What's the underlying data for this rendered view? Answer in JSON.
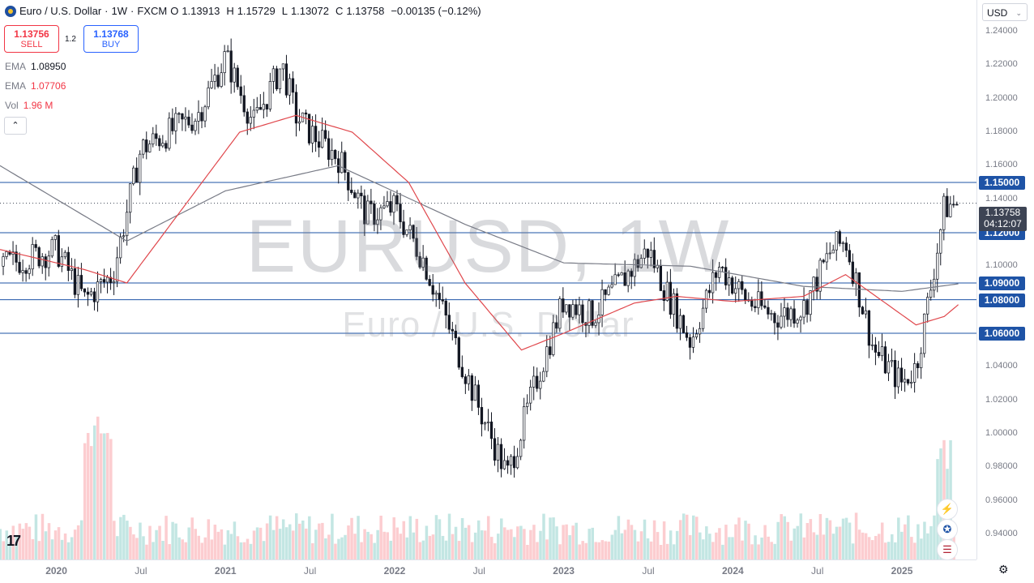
{
  "header": {
    "title": "Euro / U.S. Dollar",
    "interval": "1W",
    "source": "FXCM",
    "ohlc": [
      {
        "k": "O",
        "v": "1.13913"
      },
      {
        "k": "H",
        "v": "1.15729"
      },
      {
        "k": "L",
        "v": "1.13072"
      },
      {
        "k": "C",
        "v": "1.13758"
      }
    ],
    "change": "−0.00135 (−0.12%)"
  },
  "trade": {
    "sell_price": "1.13756",
    "sell_label": "SELL",
    "spread": "1.2",
    "buy_price": "1.13768",
    "buy_label": "BUY"
  },
  "indicators": [
    {
      "name": "EMA",
      "value": "1.08950",
      "color": "#787b86"
    },
    {
      "name": "EMA",
      "value": "1.07706",
      "color": "#f23645"
    },
    {
      "name": "Vol",
      "value": "1.96 M",
      "color": "#f23645"
    }
  ],
  "collapse_glyph": "⌃",
  "currency": "USD",
  "watermark": {
    "symbol": "EURUSD, 1W",
    "description": "Euro / U.S. Dollar"
  },
  "current_price": {
    "price": "1.13758",
    "countdown": "04:12:07"
  },
  "colors": {
    "up": "#26a69a",
    "down": "#131722",
    "level_line": "#1e53a6",
    "ema_fast": "#787b86",
    "ema_slow": "#e0474c"
  },
  "chart_data": {
    "type": "candlestick",
    "symbol": "EURUSD",
    "interval": "1W",
    "ylim": [
      0.925,
      1.255
    ],
    "xlim": [
      "2019-09",
      "2025-06"
    ],
    "y_ticks": [
      "1.24000",
      "1.22000",
      "1.20000",
      "1.18000",
      "1.16000",
      "1.14000",
      "1.12000",
      "1.10000",
      "1.08000",
      "1.06000",
      "1.04000",
      "1.02000",
      "1.00000",
      "0.98000",
      "0.96000",
      "0.94000"
    ],
    "x_ticks": [
      {
        "label": "2020",
        "date": "2020-01"
      },
      {
        "label": "Jul",
        "date": "2020-07"
      },
      {
        "label": "2021",
        "date": "2021-01"
      },
      {
        "label": "Jul",
        "date": "2021-07"
      },
      {
        "label": "2022",
        "date": "2022-01"
      },
      {
        "label": "Jul",
        "date": "2022-07"
      },
      {
        "label": "2023",
        "date": "2023-01"
      },
      {
        "label": "Jul",
        "date": "2023-07"
      },
      {
        "label": "2024",
        "date": "2024-01"
      },
      {
        "label": "Jul",
        "date": "2024-07"
      },
      {
        "label": "2025",
        "date": "2025-01"
      }
    ],
    "levels": [
      "1.15000",
      "1.12000",
      "1.09000",
      "1.08000",
      "1.06000"
    ],
    "price_path": [
      [
        "2019-09",
        1.1
      ],
      [
        "2019-11",
        1.105
      ],
      [
        "2020-01",
        1.11
      ],
      [
        "2020-03",
        1.08
      ],
      [
        "2020-05",
        1.095
      ],
      [
        "2020-07",
        1.17
      ],
      [
        "2020-09",
        1.18
      ],
      [
        "2020-11",
        1.19
      ],
      [
        "2021-01",
        1.225
      ],
      [
        "2021-03",
        1.185
      ],
      [
        "2021-05",
        1.22
      ],
      [
        "2021-06",
        1.19
      ],
      [
        "2021-07",
        1.18
      ],
      [
        "2021-09",
        1.165
      ],
      [
        "2021-11",
        1.13
      ],
      [
        "2022-01",
        1.135
      ],
      [
        "2022-03",
        1.105
      ],
      [
        "2022-05",
        1.06
      ],
      [
        "2022-07",
        1.015
      ],
      [
        "2022-09",
        0.975
      ],
      [
        "2022-11",
        1.03
      ],
      [
        "2023-01",
        1.08
      ],
      [
        "2023-03",
        1.07
      ],
      [
        "2023-05",
        1.09
      ],
      [
        "2023-07",
        1.11
      ],
      [
        "2023-08",
        1.09
      ],
      [
        "2023-10",
        1.055
      ],
      [
        "2023-12",
        1.1
      ],
      [
        "2024-02",
        1.08
      ],
      [
        "2024-04",
        1.07
      ],
      [
        "2024-06",
        1.075
      ],
      [
        "2024-08",
        1.11
      ],
      [
        "2024-09",
        1.115
      ],
      [
        "2024-11",
        1.05
      ],
      [
        "2025-01",
        1.03
      ],
      [
        "2025-02",
        1.04
      ],
      [
        "2025-03",
        1.085
      ],
      [
        "2025-04",
        1.135
      ],
      [
        "2025-05",
        1.138
      ]
    ],
    "ema_fast": [
      [
        "2019-09",
        1.16
      ],
      [
        "2020-06",
        1.115
      ],
      [
        "2021-01",
        1.145
      ],
      [
        "2021-09",
        1.16
      ],
      [
        "2022-06",
        1.125
      ],
      [
        "2023-01",
        1.102
      ],
      [
        "2023-10",
        1.1
      ],
      [
        "2024-06",
        1.088
      ],
      [
        "2025-01",
        1.085
      ],
      [
        "2025-05",
        1.0895
      ]
    ],
    "ema_slow": [
      [
        "2019-09",
        1.11
      ],
      [
        "2020-03",
        1.098
      ],
      [
        "2020-06",
        1.09
      ],
      [
        "2020-10",
        1.135
      ],
      [
        "2021-02",
        1.18
      ],
      [
        "2021-06",
        1.19
      ],
      [
        "2021-10",
        1.18
      ],
      [
        "2022-02",
        1.15
      ],
      [
        "2022-06",
        1.09
      ],
      [
        "2022-10",
        1.05
      ],
      [
        "2023-01",
        1.06
      ],
      [
        "2023-06",
        1.078
      ],
      [
        "2023-09",
        1.082
      ],
      [
        "2024-01",
        1.079
      ],
      [
        "2024-06",
        1.082
      ],
      [
        "2024-09",
        1.095
      ],
      [
        "2025-02",
        1.065
      ],
      [
        "2025-04",
        1.07
      ],
      [
        "2025-05",
        1.07706
      ]
    ],
    "volume_series": {
      "name": "Vol",
      "last": "1.96 M"
    }
  },
  "side_icons": [
    {
      "name": "lightning-icon",
      "glyph": "⚡"
    },
    {
      "name": "eu-flag-icon",
      "glyph": "✪"
    },
    {
      "name": "us-flag-icon",
      "glyph": "☰"
    }
  ],
  "logo": "17",
  "settings_glyph": "⚙"
}
